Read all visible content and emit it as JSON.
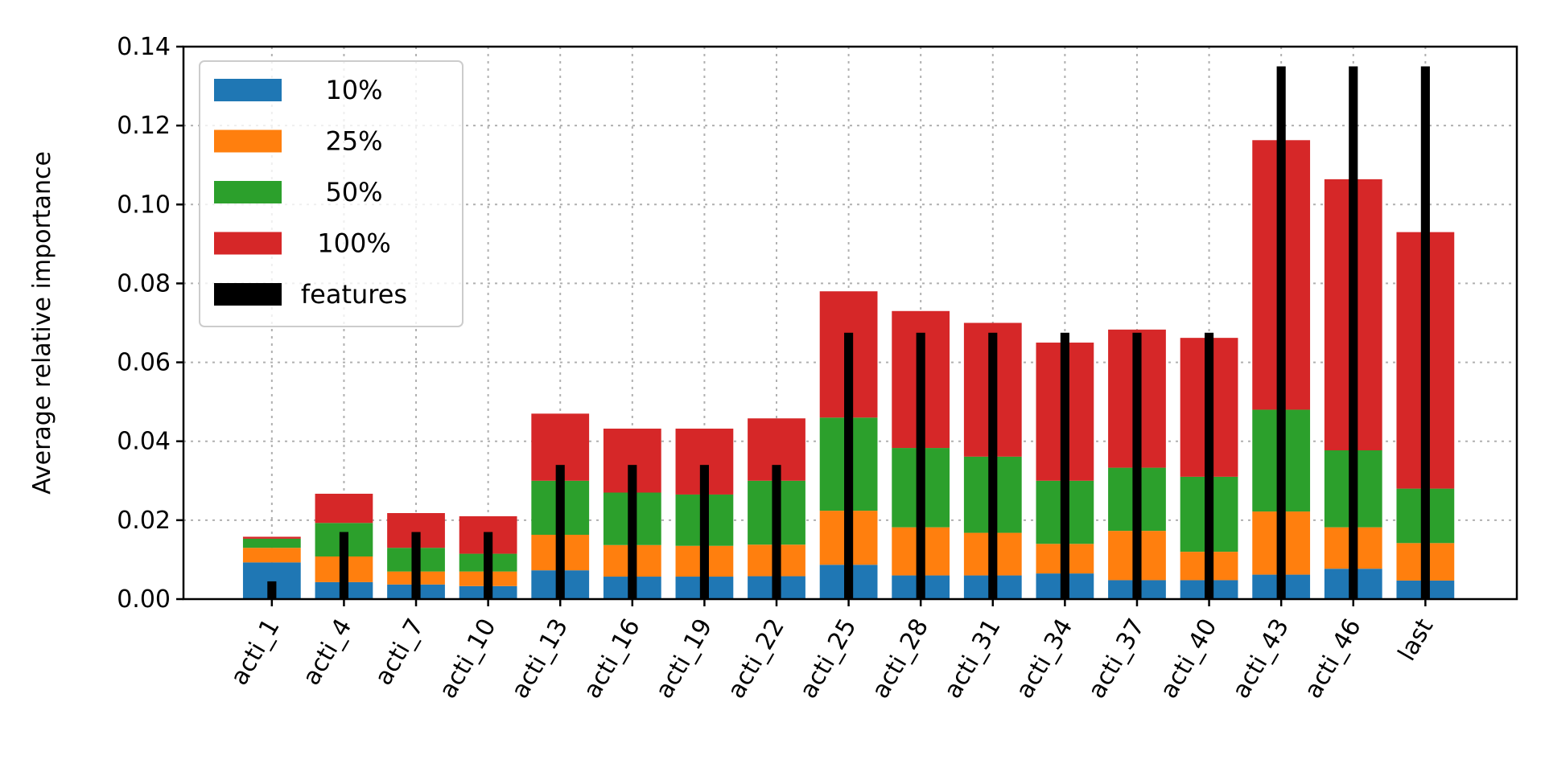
{
  "chart_data": {
    "type": "bar",
    "title": "",
    "xlabel": "",
    "ylabel": "Average relative importance",
    "ylim": [
      0,
      0.14
    ],
    "yticks": [
      "0.00",
      "0.02",
      "0.04",
      "0.06",
      "0.08",
      "0.10",
      "0.12",
      "0.14"
    ],
    "grid": true,
    "stacked": true,
    "legend_position": "top-left",
    "categories": [
      "acti_1",
      "acti_4",
      "acti_7",
      "acti_10",
      "acti_13",
      "acti_16",
      "acti_19",
      "acti_22",
      "acti_25",
      "acti_28",
      "acti_31",
      "acti_34",
      "acti_37",
      "acti_40",
      "acti_43",
      "acti_46",
      "last"
    ],
    "series": [
      {
        "name": "10%",
        "color": "#1f77b4",
        "values": [
          0.0093,
          0.0043,
          0.0037,
          0.0033,
          0.0073,
          0.0057,
          0.0057,
          0.0058,
          0.0087,
          0.006,
          0.006,
          0.0065,
          0.0048,
          0.0048,
          0.0062,
          0.0077,
          0.0047
        ]
      },
      {
        "name": "25%",
        "color": "#ff7f0e",
        "values": [
          0.0037,
          0.0065,
          0.0033,
          0.0037,
          0.009,
          0.008,
          0.0078,
          0.008,
          0.0137,
          0.0122,
          0.0108,
          0.0075,
          0.0125,
          0.0072,
          0.016,
          0.0105,
          0.0095
        ]
      },
      {
        "name": "50%",
        "color": "#2ca02c",
        "values": [
          0.0023,
          0.0085,
          0.006,
          0.0045,
          0.0137,
          0.0133,
          0.013,
          0.0162,
          0.0236,
          0.0201,
          0.0193,
          0.016,
          0.016,
          0.019,
          0.0258,
          0.0195,
          0.0138
        ]
      },
      {
        "name": "100%",
        "color": "#d62728",
        "values": [
          0.0005,
          0.0074,
          0.0088,
          0.0095,
          0.017,
          0.0162,
          0.0167,
          0.0158,
          0.032,
          0.0347,
          0.0339,
          0.035,
          0.035,
          0.0352,
          0.0683,
          0.0687,
          0.065
        ]
      }
    ],
    "features": {
      "name": "features",
      "color": "#000000",
      "values": [
        0.0045,
        0.017,
        0.017,
        0.017,
        0.034,
        0.034,
        0.034,
        0.034,
        0.0675,
        0.0675,
        0.0675,
        0.0675,
        0.0675,
        0.0675,
        0.135,
        0.135,
        0.135
      ]
    }
  }
}
